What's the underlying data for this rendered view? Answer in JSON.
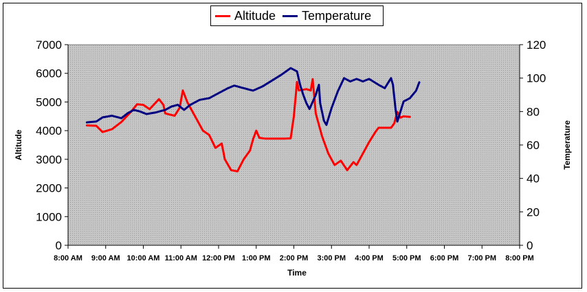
{
  "chart_data": {
    "type": "line",
    "xlabel": "Time",
    "x_ticks": [
      "8:00 AM",
      "9:00 AM",
      "10:00 AM",
      "11:00 AM",
      "12:00 PM",
      "1:00 PM",
      "2:00 PM",
      "3:00 PM",
      "4:00 PM",
      "5:00 PM",
      "6:00 PM",
      "7:00 PM",
      "8:00 PM"
    ],
    "xlim": [
      "8:00 AM",
      "8:00 PM"
    ],
    "y_left": {
      "label": "Altitude",
      "lim": [
        0,
        7000
      ],
      "ticks": [
        "0",
        "1000",
        "2000",
        "3000",
        "4000",
        "5000",
        "6000",
        "7000"
      ]
    },
    "y_right": {
      "label": "Temperature",
      "lim": [
        0,
        120
      ],
      "ticks": [
        "0",
        "20",
        "40",
        "60",
        "80",
        "100",
        "120"
      ]
    },
    "legend_position": "top-center",
    "plot_background": "#c0c0c0",
    "series": [
      {
        "name": "Altitude",
        "axis": "left",
        "color": "#ff0000",
        "points": [
          [
            "8:30 AM",
            4180
          ],
          [
            "8:45 AM",
            4170
          ],
          [
            "8:55 AM",
            3950
          ],
          [
            "9:10 AM",
            4050
          ],
          [
            "9:25 AM",
            4300
          ],
          [
            "9:40 AM",
            4650
          ],
          [
            "9:50 AM",
            4920
          ],
          [
            "10:00 AM",
            4900
          ],
          [
            "10:10 AM",
            4750
          ],
          [
            "10:25 AM",
            5100
          ],
          [
            "10:32 AM",
            4900
          ],
          [
            "10:35 AM",
            4600
          ],
          [
            "10:50 AM",
            4520
          ],
          [
            "10:58 AM",
            4800
          ],
          [
            "11:03 AM",
            5400
          ],
          [
            "11:10 AM",
            5000
          ],
          [
            "11:20 AM",
            4600
          ],
          [
            "11:35 AM",
            4000
          ],
          [
            "11:45 AM",
            3850
          ],
          [
            "11:55 AM",
            3400
          ],
          [
            "12:05 PM",
            3550
          ],
          [
            "12:10 PM",
            3000
          ],
          [
            "12:20 PM",
            2620
          ],
          [
            "12:30 PM",
            2580
          ],
          [
            "12:40 PM",
            3000
          ],
          [
            "12:50 PM",
            3300
          ],
          [
            "12:55 PM",
            3700
          ],
          [
            "1:00 PM",
            4000
          ],
          [
            "1:05 PM",
            3750
          ],
          [
            "1:15 PM",
            3720
          ],
          [
            "1:45 PM",
            3720
          ],
          [
            "1:55 PM",
            3730
          ],
          [
            "2:00 PM",
            4500
          ],
          [
            "2:05 PM",
            5700
          ],
          [
            "2:08 PM",
            5400
          ],
          [
            "2:20 PM",
            5450
          ],
          [
            "2:27 PM",
            5400
          ],
          [
            "2:30 PM",
            5800
          ],
          [
            "2:35 PM",
            4600
          ],
          [
            "2:45 PM",
            3800
          ],
          [
            "2:55 PM",
            3200
          ],
          [
            "3:05 PM",
            2800
          ],
          [
            "3:15 PM",
            2950
          ],
          [
            "3:25 PM",
            2620
          ],
          [
            "3:35 PM",
            2900
          ],
          [
            "3:40 PM",
            2800
          ],
          [
            "3:50 PM",
            3200
          ],
          [
            "4:00 PM",
            3600
          ],
          [
            "4:10 PM",
            3950
          ],
          [
            "4:15 PM",
            4100
          ],
          [
            "4:25 PM",
            4100
          ],
          [
            "4:35 PM",
            4100
          ],
          [
            "4:40 PM",
            4250
          ],
          [
            "4:45 PM",
            4650
          ],
          [
            "4:50 PM",
            4450
          ],
          [
            "4:55 PM",
            4500
          ],
          [
            "5:05 PM",
            4480
          ]
        ]
      },
      {
        "name": "Temperature",
        "axis": "right",
        "color": "#000080",
        "points": [
          [
            "8:30 AM",
            73.5
          ],
          [
            "8:45 AM",
            74
          ],
          [
            "8:55 AM",
            76.5
          ],
          [
            "9:10 AM",
            77.5
          ],
          [
            "9:25 AM",
            76
          ],
          [
            "9:35 AM",
            79
          ],
          [
            "9:45 AM",
            81
          ],
          [
            "9:55 AM",
            80
          ],
          [
            "10:05 AM",
            78.5
          ],
          [
            "10:20 AM",
            79.5
          ],
          [
            "10:35 AM",
            81
          ],
          [
            "10:45 AM",
            83
          ],
          [
            "10:55 AM",
            84
          ],
          [
            "11:05 AM",
            81
          ],
          [
            "11:15 AM",
            84
          ],
          [
            "11:30 AM",
            87
          ],
          [
            "11:45 AM",
            88
          ],
          [
            "12:00 PM",
            91
          ],
          [
            "12:15 PM",
            94
          ],
          [
            "12:25 PM",
            95.5
          ],
          [
            "12:40 PM",
            94
          ],
          [
            "12:55 PM",
            92.5
          ],
          [
            "1:10 PM",
            95
          ],
          [
            "1:25 PM",
            98.5
          ],
          [
            "1:40 PM",
            102
          ],
          [
            "1:55 PM",
            106
          ],
          [
            "2:05 PM",
            104
          ],
          [
            "2:10 PM",
            96
          ],
          [
            "2:15 PM",
            90
          ],
          [
            "2:20 PM",
            85
          ],
          [
            "2:25 PM",
            81.5
          ],
          [
            "2:35 PM",
            90
          ],
          [
            "2:40 PM",
            96
          ],
          [
            "2:42 PM",
            85
          ],
          [
            "2:48 PM",
            74.5
          ],
          [
            "2:52 PM",
            72
          ],
          [
            "3:00 PM",
            82
          ],
          [
            "3:10 PM",
            92
          ],
          [
            "3:20 PM",
            100
          ],
          [
            "3:30 PM",
            98
          ],
          [
            "3:40 PM",
            99.5
          ],
          [
            "3:50 PM",
            98
          ],
          [
            "4:00 PM",
            99.5
          ],
          [
            "4:15 PM",
            96
          ],
          [
            "4:25 PM",
            94
          ],
          [
            "4:35 PM",
            100
          ],
          [
            "4:38 PM",
            96
          ],
          [
            "4:42 PM",
            82
          ],
          [
            "4:45 PM",
            74
          ],
          [
            "4:50 PM",
            80
          ],
          [
            "4:55 PM",
            86
          ],
          [
            "5:05 PM",
            88
          ],
          [
            "5:15 PM",
            92.5
          ],
          [
            "5:20 PM",
            97.5
          ]
        ]
      }
    ]
  }
}
